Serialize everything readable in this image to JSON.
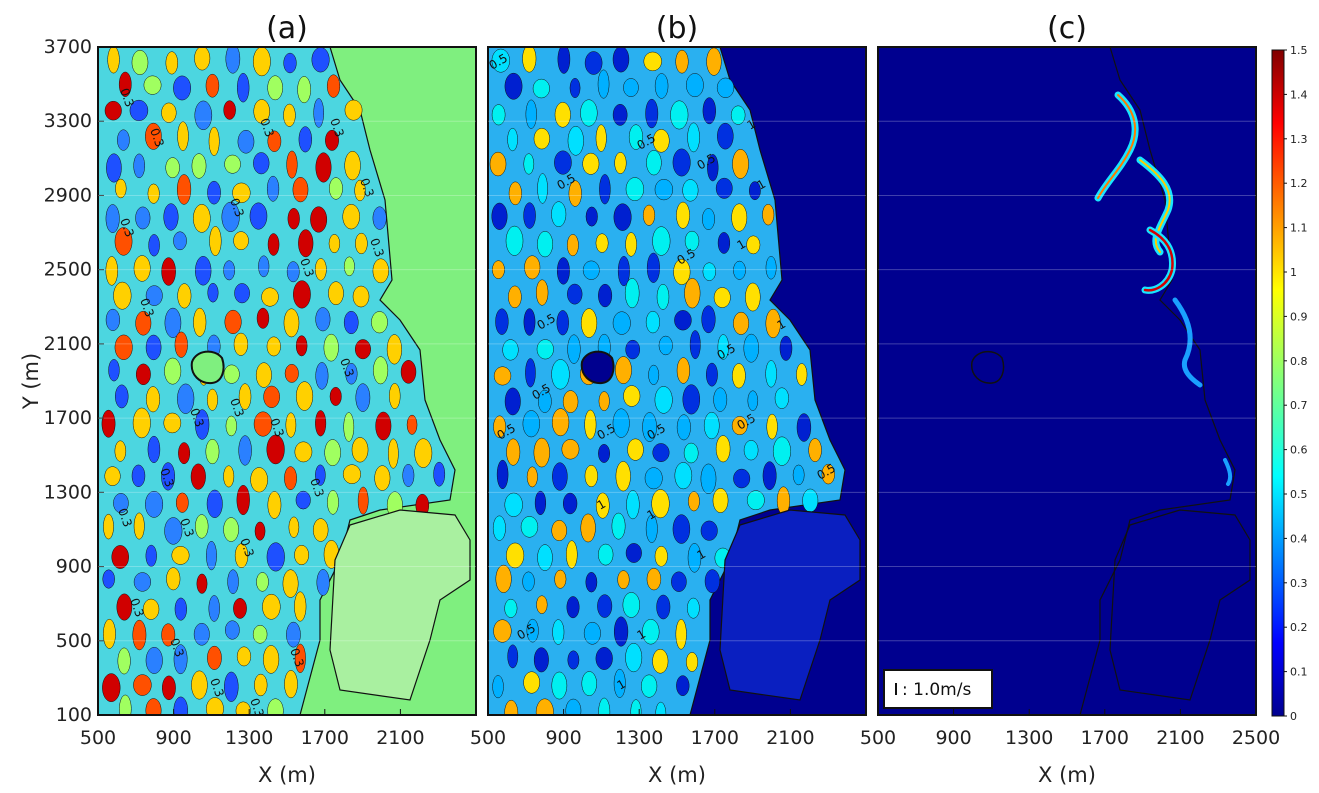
{
  "chart_data": [
    {
      "type": "heatmap",
      "panel_label": "(a)",
      "xlabel": "X (m)",
      "ylabel": "Y (m)",
      "xlim": [
        500,
        2500
      ],
      "ylim": [
        100,
        3700
      ],
      "xticks": [
        "500",
        "900",
        "1300",
        "1700",
        "2100"
      ],
      "yticks": [
        "100",
        "500",
        "900",
        "1300",
        "1700",
        "2100",
        "2500",
        "2900",
        "3300",
        "3700"
      ],
      "contour_labels": [
        "0.3",
        "0.3",
        "0.3",
        "0.3",
        "0.3",
        "0.3",
        "0.3",
        "0.3",
        "0.3",
        "0.3",
        "0.3",
        "0.3",
        "0.3",
        "0.3",
        "0.3",
        "0.3",
        "0.3",
        "0.3",
        "0.3",
        "0.3",
        "0.3",
        "0.3",
        "0.3",
        "0.3"
      ]
    },
    {
      "type": "heatmap",
      "panel_label": "(b)",
      "xlabel": "X (m)",
      "xlim": [
        500,
        2500
      ],
      "ylim": [
        100,
        3700
      ],
      "xticks": [
        "500",
        "900",
        "1300",
        "1700",
        "2100"
      ],
      "contour_labels": [
        "0.5",
        "0.5",
        "0.5",
        "0.5",
        "0.5",
        "0.5",
        "0.5",
        "0.5",
        "0.5",
        "0.5",
        "0.5",
        "0.5",
        "0.5",
        "0.5",
        "1",
        "1",
        "1",
        "1",
        "1",
        "1",
        "1",
        "1",
        "1"
      ]
    },
    {
      "type": "heatmap",
      "panel_label": "(c)",
      "xlabel": "X (m)",
      "xlim": [
        500,
        2500
      ],
      "ylim": [
        100,
        3700
      ],
      "xticks": [
        "500",
        "900",
        "1300",
        "1700",
        "2100",
        "2500"
      ],
      "scale_label": ": 1.0m/s",
      "colorbar": {
        "ticks": [
          "0",
          "0.1",
          "0.2",
          "0.3",
          "0.4",
          "0.5",
          "0.6",
          "0.7",
          "0.8",
          "0.9",
          "1",
          "1.1",
          "1.2",
          "1.3",
          "1.4",
          "1.5"
        ],
        "range": [
          0,
          1.5
        ],
        "colormap": "jet"
      }
    }
  ],
  "colors": {
    "jet_low": "#00008f",
    "jet_mid": "#7fff7f",
    "jet_high": "#800000",
    "land_a": "#7fef7f",
    "land_bc": "#00008f"
  }
}
